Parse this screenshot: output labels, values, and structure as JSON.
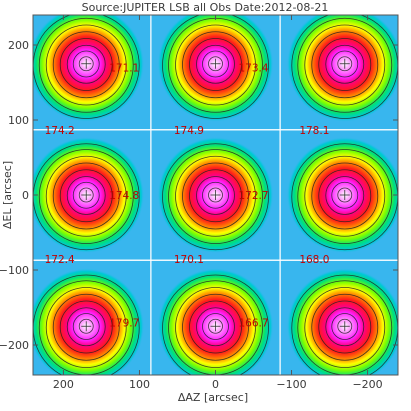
{
  "chart_data": {
    "type": "heatmap",
    "title": "Source:JUPITER LSB all Obs Date:2012-08-21",
    "xlabel": "ΔAZ [arcsec]",
    "ylabel": "ΔEL [arcsec]",
    "xlim": [
      240,
      -240
    ],
    "ylim": [
      -240,
      240
    ],
    "xticks": [
      200,
      100,
      0,
      -100,
      -200
    ],
    "yticks": [
      200,
      100,
      0,
      -100,
      -200
    ],
    "grid_layout": "3x3",
    "beam_centers": [
      {
        "az": 170,
        "el": 175
      },
      {
        "az": 0,
        "el": 175
      },
      {
        "az": -170,
        "el": 175
      },
      {
        "az": 170,
        "el": 0
      },
      {
        "az": 0,
        "el": 0
      },
      {
        "az": -170,
        "el": 0
      },
      {
        "az": 170,
        "el": -175
      },
      {
        "az": 0,
        "el": -175
      },
      {
        "az": -170,
        "el": -175
      }
    ],
    "annotations": [
      {
        "text": "171.1",
        "az": 120,
        "el": 170
      },
      {
        "text": "173.4",
        "az": -50,
        "el": 170
      },
      {
        "text": "174.2",
        "az": 205,
        "el": 87
      },
      {
        "text": "174.9",
        "az": 35,
        "el": 87
      },
      {
        "text": "178.1",
        "az": -130,
        "el": 87
      },
      {
        "text": "174.8",
        "az": 120,
        "el": 0
      },
      {
        "text": "172.7",
        "az": -50,
        "el": 0
      },
      {
        "text": "172.4",
        "az": 205,
        "el": -85
      },
      {
        "text": "170.1",
        "az": 35,
        "el": -85
      },
      {
        "text": "168.0",
        "az": -130,
        "el": -85
      },
      {
        "text": "179.7",
        "az": 120,
        "el": -170
      },
      {
        "text": "166.7",
        "az": -50,
        "el": -170
      }
    ],
    "colors": {
      "background": "#38b6ee",
      "frame": "#555555",
      "panel_lines": "#ffffff",
      "annotation": "#c00000",
      "contour": "#222222"
    }
  }
}
